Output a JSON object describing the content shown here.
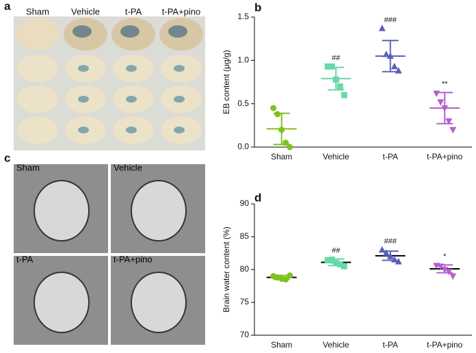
{
  "panels": {
    "a": {
      "label": "a",
      "columns": [
        "Sham",
        "Vehicle",
        "t-PA",
        "t-PA+pino"
      ]
    },
    "b": {
      "label": "b"
    },
    "c": {
      "label": "c",
      "images": [
        "Sham",
        "Vehicle",
        "t-PA",
        "t-PA+pino"
      ]
    },
    "d": {
      "label": "d"
    }
  },
  "chart_data": [
    {
      "type": "dot",
      "ylabel": "EB content (μg/g)",
      "categories": [
        "Sham",
        "Vehicle",
        "t-PA",
        "t-PA+pino"
      ],
      "colors": [
        "#7dc21e",
        "#66d9a8",
        "#5a62b8",
        "#b55fd0"
      ],
      "markers": [
        "circle",
        "square",
        "triangle-up",
        "triangle-down"
      ],
      "points": [
        [
          0.45,
          0.38,
          0.2,
          0.05,
          0.0
        ],
        [
          0.93,
          0.93,
          0.78,
          0.7,
          0.6
        ],
        [
          1.37,
          1.07,
          1.05,
          0.93,
          0.88
        ],
        [
          0.62,
          0.52,
          0.45,
          0.3,
          0.2
        ]
      ],
      "means": [
        0.21,
        0.79,
        1.05,
        0.45
      ],
      "sd": [
        0.18,
        0.13,
        0.18,
        0.18
      ],
      "annotations": [
        null,
        "##",
        "###",
        "**"
      ],
      "ylim": [
        0,
        1.5
      ],
      "yticks": [
        {
          "value": 0,
          "label": "0.0"
        },
        {
          "value": 0.5,
          "label": "0.5"
        },
        {
          "value": 1,
          "label": "1.0"
        },
        {
          "value": 1.5,
          "label": "1.5"
        }
      ]
    },
    {
      "type": "dot",
      "ylabel": "Brain water content (%)",
      "categories": [
        "Sham",
        "Vehicle",
        "t-PA",
        "t-PA+pino"
      ],
      "colors": [
        "#7dc21e",
        "#66d9a8",
        "#5a62b8",
        "#b55fd0"
      ],
      "markers": [
        "circle",
        "square",
        "triangle-up",
        "triangle-down"
      ],
      "points": [
        [
          79.0,
          78.8,
          78.6,
          78.5,
          79.1
        ],
        [
          81.4,
          81.5,
          81.0,
          80.8,
          80.5
        ],
        [
          83.0,
          82.5,
          82.0,
          81.5,
          81.2
        ],
        [
          80.6,
          80.5,
          80.0,
          79.7,
          79.0
        ]
      ],
      "means": [
        78.8,
        81.1,
        82.1,
        80.1
      ],
      "sd": [
        0.3,
        0.5,
        0.7,
        0.6
      ],
      "mean_line_color": "#000000",
      "annotations": [
        null,
        "##",
        "###",
        "*"
      ],
      "ylim": [
        70,
        90
      ],
      "yticks": [
        70,
        75,
        80,
        85,
        90
      ]
    }
  ]
}
